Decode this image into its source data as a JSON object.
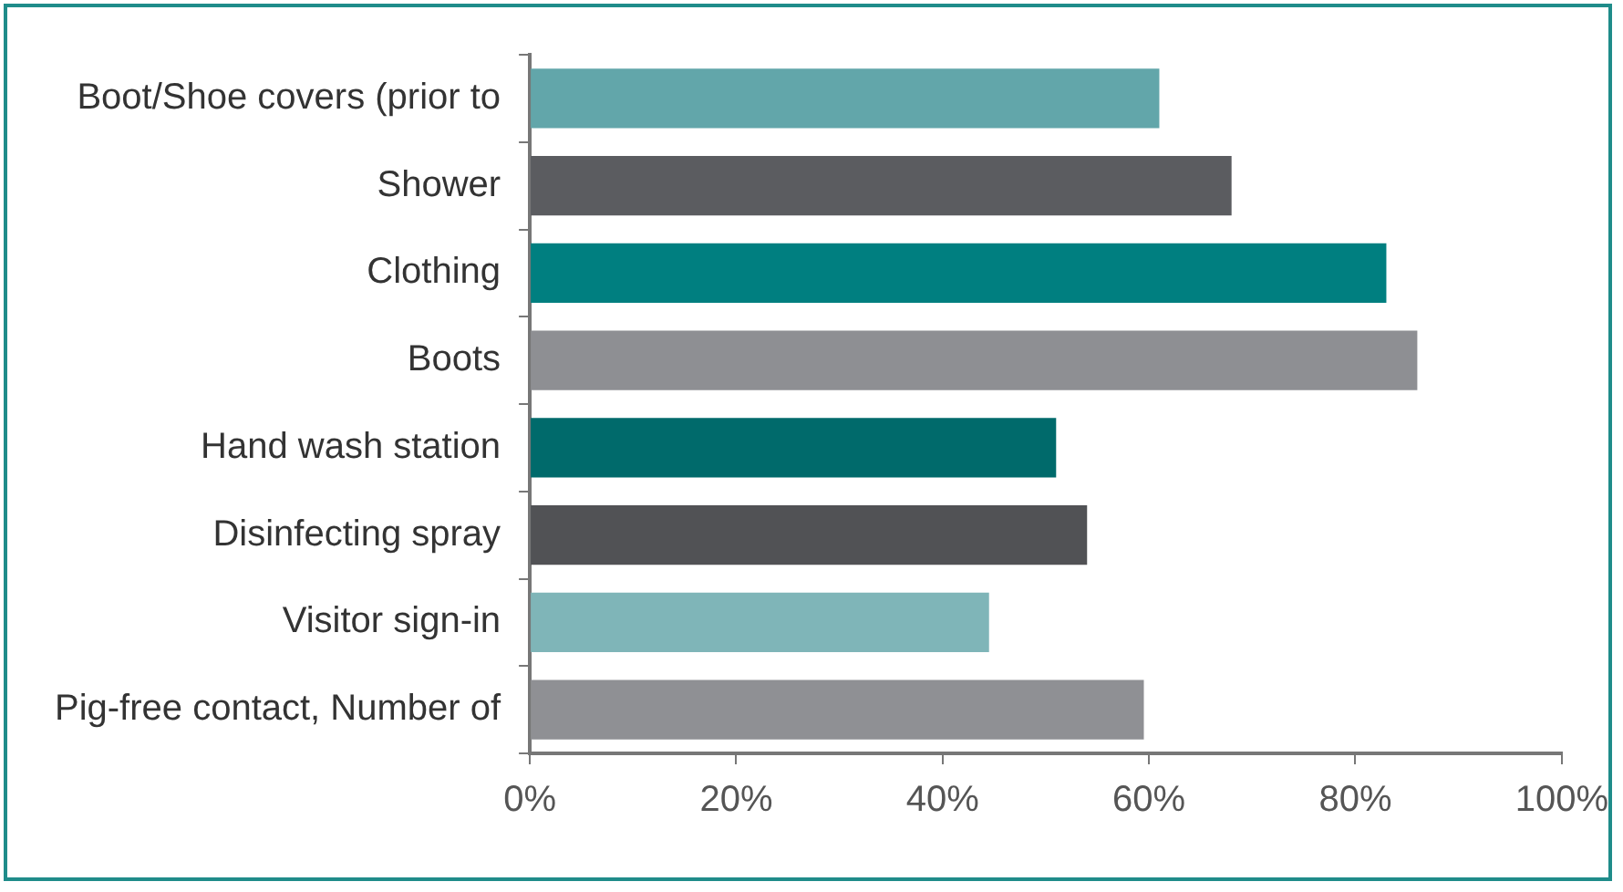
{
  "chart_data": {
    "type": "bar",
    "orientation": "horizontal",
    "categories": [
      "Boot/Shoe covers (prior to",
      "Shower",
      "Clothing",
      "Boots",
      "Hand wash station",
      "Disinfecting spray",
      "Visitor sign-in",
      "Pig-free contact, Number of"
    ],
    "values": [
      61,
      68,
      83,
      86,
      51,
      54,
      44.5,
      59.5
    ],
    "colors": [
      "#62a6aa",
      "#5b5c60",
      "#007f80",
      "#8e8f93",
      "#006a6b",
      "#515255",
      "#7fb5b8",
      "#8f9094"
    ],
    "xlim": [
      0,
      100
    ],
    "xticks": [
      {
        "value": 0,
        "label": "0%"
      },
      {
        "value": 20,
        "label": "20%"
      },
      {
        "value": 40,
        "label": "40%"
      },
      {
        "value": 60,
        "label": "60%"
      },
      {
        "value": 80,
        "label": "80%"
      },
      {
        "value": 100,
        "label": "100%"
      }
    ],
    "grid": false,
    "legend": false
  }
}
